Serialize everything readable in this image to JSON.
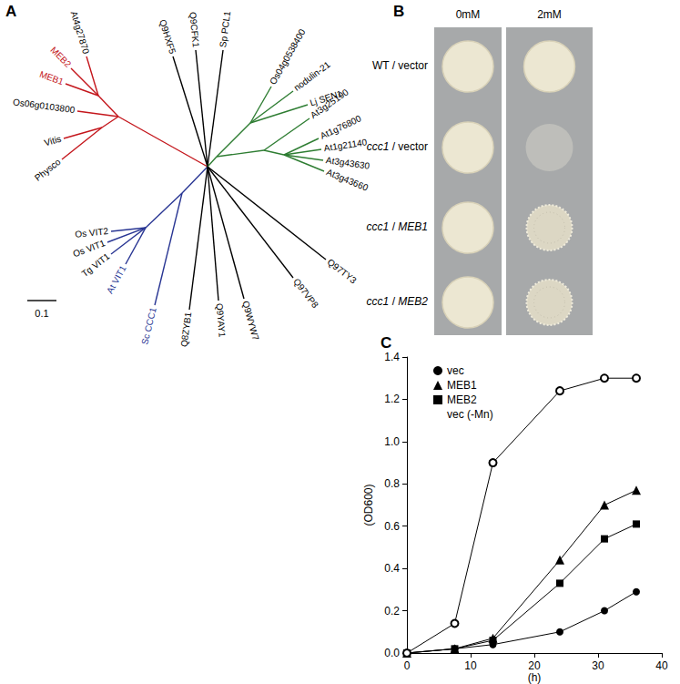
{
  "panel_labels": [
    "A",
    "B",
    "C"
  ],
  "tree": {
    "clades": [
      {
        "color": "#c4161c",
        "leaves": [
          {
            "label": "At4g27870",
            "color": "#000000"
          },
          {
            "label": "MEB2",
            "color": "#c4161c"
          },
          {
            "label": "MEB1",
            "color": "#c4161c"
          },
          {
            "label": "Os06g0103800",
            "color": "#000000"
          },
          {
            "label": "Vitis",
            "color": "#000000"
          },
          {
            "label": "Physco",
            "color": "#000000"
          }
        ]
      },
      {
        "color": "#000000",
        "leaves": [
          {
            "label": "Q9HXF5",
            "color": "#000000"
          },
          {
            "label": "Q9CFK1",
            "color": "#000000"
          },
          {
            "label": "Sp PCL1",
            "color": "#000000"
          }
        ]
      },
      {
        "color": "#2e7d32",
        "leaves": [
          {
            "label": "Os04g0538400",
            "color": "#000000"
          },
          {
            "label": "nodulin-21",
            "color": "#000000"
          },
          {
            "label": "Lj SEN1",
            "color": "#000000"
          },
          {
            "label": "At3g25190",
            "color": "#000000"
          },
          {
            "label": "At1g76800",
            "color": "#000000"
          },
          {
            "label": "At1g21140",
            "color": "#000000"
          },
          {
            "label": "At3g43630",
            "color": "#000000"
          },
          {
            "label": "At3g43660",
            "color": "#000000"
          }
        ]
      },
      {
        "color": "#283593",
        "leaves": [
          {
            "label": "Os VIT2",
            "color": "#000000"
          },
          {
            "label": "Os VIT1",
            "color": "#000000"
          },
          {
            "label": "Tg VIT1",
            "color": "#000000"
          },
          {
            "label": "At VIT1",
            "color": "#283593"
          },
          {
            "label": "Sc CCC1",
            "color": "#283593"
          }
        ]
      },
      {
        "color": "#000000",
        "leaves": [
          {
            "label": "Q8ZYB1",
            "color": "#000000"
          },
          {
            "label": "Q9YAY1",
            "color": "#000000"
          },
          {
            "label": "Q9WYW7",
            "color": "#000000"
          },
          {
            "label": "Q97VP8",
            "color": "#000000"
          },
          {
            "label": "Q97TY3",
            "color": "#000000"
          }
        ]
      }
    ],
    "scale_bar": "0.1"
  },
  "spot_assay": {
    "columns": [
      "0mM",
      "2mM"
    ],
    "rows": [
      [
        {
          "text": "WT / vector",
          "italic": false
        }
      ],
      [
        {
          "text": "ccc1",
          "italic": true
        },
        {
          "text": " / vector",
          "italic": false
        }
      ],
      [
        {
          "text": "ccc1",
          "italic": true
        },
        {
          "text": " / ",
          "italic": false
        },
        {
          "text": "MEB1",
          "italic": true
        }
      ],
      [
        {
          "text": "ccc1",
          "italic": true
        },
        {
          "text": " / ",
          "italic": false
        },
        {
          "text": "MEB2",
          "italic": true
        }
      ]
    ]
  },
  "chart_data": {
    "type": "line",
    "xlabel": "(h)",
    "ylabel": "(OD600)",
    "x": [
      0,
      7.5,
      13.5,
      24,
      31,
      36
    ],
    "series": [
      {
        "name": "vec",
        "color": "#000000",
        "marker": "circle",
        "values": [
          0,
          0.02,
          0.04,
          0.1,
          0.2,
          0.29
        ]
      },
      {
        "name": "MEB1",
        "color": "#000000",
        "marker": "triangle",
        "values": [
          0,
          0.02,
          0.07,
          0.44,
          0.7,
          0.77
        ]
      },
      {
        "name": "MEB2",
        "color": "#000000",
        "marker": "square",
        "values": [
          0,
          0.02,
          0.06,
          0.33,
          0.54,
          0.61
        ]
      },
      {
        "name": "vec (-Mn)",
        "color": "#000000",
        "marker": "open_circle",
        "values": [
          0,
          0.14,
          0.9,
          1.24,
          1.3,
          1.3
        ]
      }
    ],
    "xlim": [
      0,
      40
    ],
    "xticks": [
      0,
      10,
      20,
      30,
      40
    ],
    "ylim": [
      0,
      1.4
    ],
    "yticks": [
      {
        "value": 0,
        "label": "0.0"
      },
      0.2,
      0.4,
      0.6,
      0.8,
      {
        "value": 1,
        "label": "1.0"
      },
      1.2,
      1.4
    ],
    "grid": false,
    "legend": "top-left"
  }
}
